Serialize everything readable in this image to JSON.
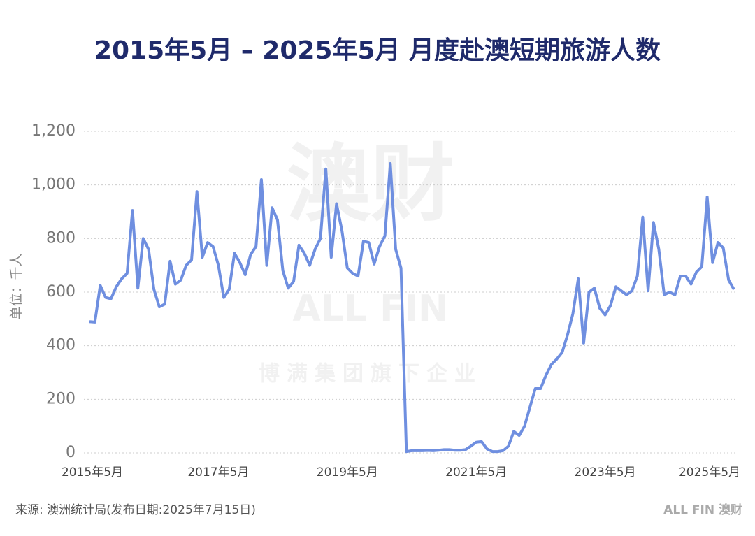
{
  "chart_data": {
    "type": "line",
    "title": "2015年5月 – 2025年5月 月度赴澳短期旅游人数",
    "y_label": "单位：千人",
    "source": "来源: 澳洲统计局(发布日期:2025年7月15日)",
    "logo": "ALL FIN 澳财",
    "watermark": [
      "澳财",
      "ALL FIN",
      "博满集团旗下企业"
    ],
    "grid": true,
    "categories": [
      "2015年5月",
      null,
      null,
      null,
      null,
      null,
      null,
      null,
      null,
      null,
      null,
      null,
      null,
      null,
      null,
      null,
      null,
      null,
      null,
      null,
      null,
      null,
      null,
      null,
      "2017年5月",
      null,
      null,
      null,
      null,
      null,
      null,
      null,
      null,
      null,
      null,
      null,
      null,
      null,
      null,
      null,
      null,
      null,
      null,
      null,
      null,
      null,
      null,
      null,
      "2019年5月",
      null,
      null,
      null,
      null,
      null,
      null,
      null,
      null,
      null,
      null,
      null,
      null,
      null,
      null,
      null,
      null,
      null,
      null,
      null,
      null,
      null,
      null,
      null,
      "2021年5月",
      null,
      null,
      null,
      null,
      null,
      null,
      null,
      null,
      null,
      null,
      null,
      null,
      null,
      null,
      null,
      null,
      null,
      null,
      null,
      null,
      null,
      null,
      null,
      "2023年5月",
      null,
      null,
      null,
      null,
      null,
      null,
      null,
      null,
      null,
      null,
      null,
      null,
      null,
      null,
      null,
      null,
      null,
      null,
      null,
      null,
      null,
      null,
      null,
      "2025年5月"
    ],
    "series": [
      {
        "name": "月度赴澳短期旅游人数",
        "color": "#6f8fe0",
        "values": [
          490,
          488,
          625,
          580,
          575,
          620,
          650,
          670,
          905,
          615,
          800,
          760,
          610,
          545,
          555,
          715,
          630,
          645,
          700,
          720,
          975,
          730,
          785,
          770,
          700,
          580,
          610,
          745,
          710,
          665,
          740,
          770,
          1020,
          700,
          915,
          870,
          680,
          615,
          640,
          775,
          745,
          700,
          760,
          800,
          1060,
          730,
          930,
          830,
          690,
          670,
          660,
          790,
          785,
          705,
          770,
          810,
          1080,
          760,
          690,
          5,
          8,
          8,
          8,
          9,
          8,
          10,
          12,
          12,
          10,
          10,
          12,
          25,
          40,
          42,
          15,
          5,
          5,
          8,
          25,
          80,
          65,
          100,
          170,
          240,
          240,
          290,
          330,
          350,
          375,
          440,
          520,
          650,
          410,
          600,
          615,
          540,
          515,
          550,
          620,
          605,
          590,
          605,
          660,
          880,
          605,
          860,
          760,
          590,
          600,
          590,
          660,
          660,
          630,
          675,
          695,
          955,
          710,
          785,
          765,
          645,
          610
        ]
      }
    ],
    "ylim": [
      0,
      1200
    ],
    "yticks": [
      0,
      200,
      400,
      600,
      800,
      {
        "value": 1000,
        "label": "1,000"
      },
      {
        "value": 1200,
        "label": "1,200"
      }
    ]
  }
}
